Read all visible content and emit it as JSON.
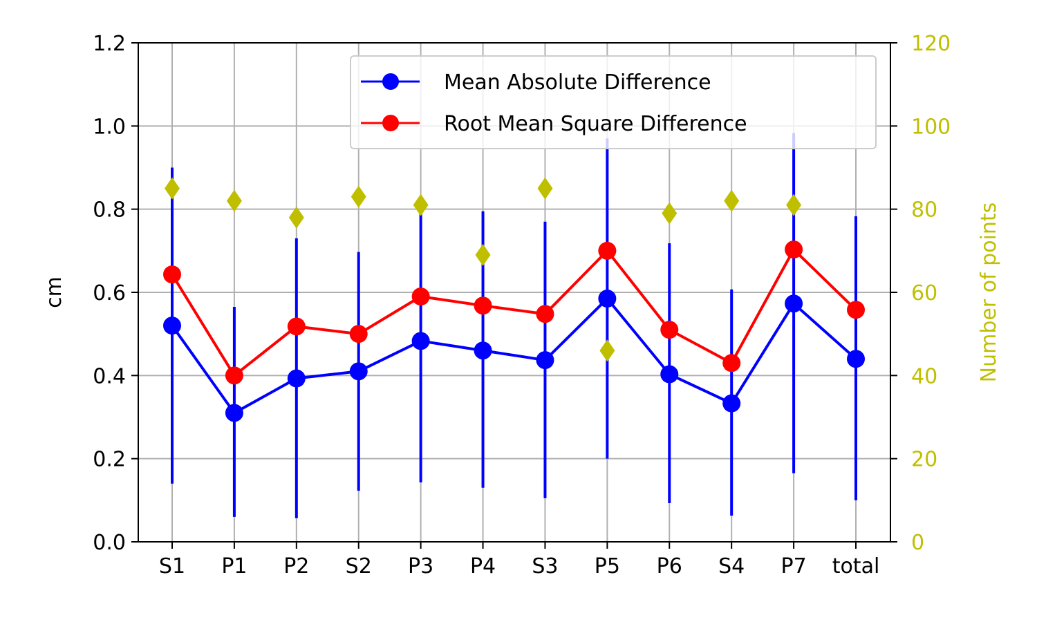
{
  "chart_data": {
    "type": "line",
    "categories": [
      "S1",
      "P1",
      "P2",
      "S2",
      "P3",
      "P4",
      "S3",
      "P5",
      "P6",
      "S4",
      "P7",
      "total"
    ],
    "series": [
      {
        "name": "Mean Absolute Difference",
        "color": "#0000ff",
        "values": [
          0.52,
          0.31,
          0.393,
          0.41,
          0.483,
          0.46,
          0.437,
          0.585,
          0.403,
          0.333,
          0.573,
          0.44
        ],
        "error_low": [
          0.14,
          0.06,
          0.057,
          0.123,
          0.143,
          0.13,
          0.105,
          0.2,
          0.093,
          0.063,
          0.165,
          0.1
        ],
        "error_high": [
          0.9,
          0.565,
          0.73,
          0.697,
          0.823,
          0.795,
          0.77,
          0.97,
          0.718,
          0.607,
          0.983,
          0.783
        ]
      },
      {
        "name": "Root Mean Square Difference",
        "color": "#ff0000",
        "values": [
          0.643,
          0.4,
          0.518,
          0.5,
          0.59,
          0.568,
          0.548,
          0.7,
          0.51,
          0.43,
          0.703,
          0.558
        ]
      }
    ],
    "count_series": {
      "color": "#bfbf00",
      "marker": "diamond",
      "values": [
        85,
        82,
        78,
        83,
        81,
        69,
        85,
        46,
        79,
        82,
        81
      ]
    },
    "ylabel": "cm",
    "ylim": [
      0,
      1.2
    ],
    "yticks": [
      "0.0",
      "0.2",
      "0.4",
      "0.6",
      "0.8",
      "1.0",
      "1.2"
    ],
    "y2label": "Number of points",
    "y2lim": [
      0,
      120
    ],
    "y2ticks": [
      "0",
      "20",
      "40",
      "60",
      "80",
      "100",
      "120"
    ],
    "grid": true,
    "legend_position": "top-right"
  }
}
